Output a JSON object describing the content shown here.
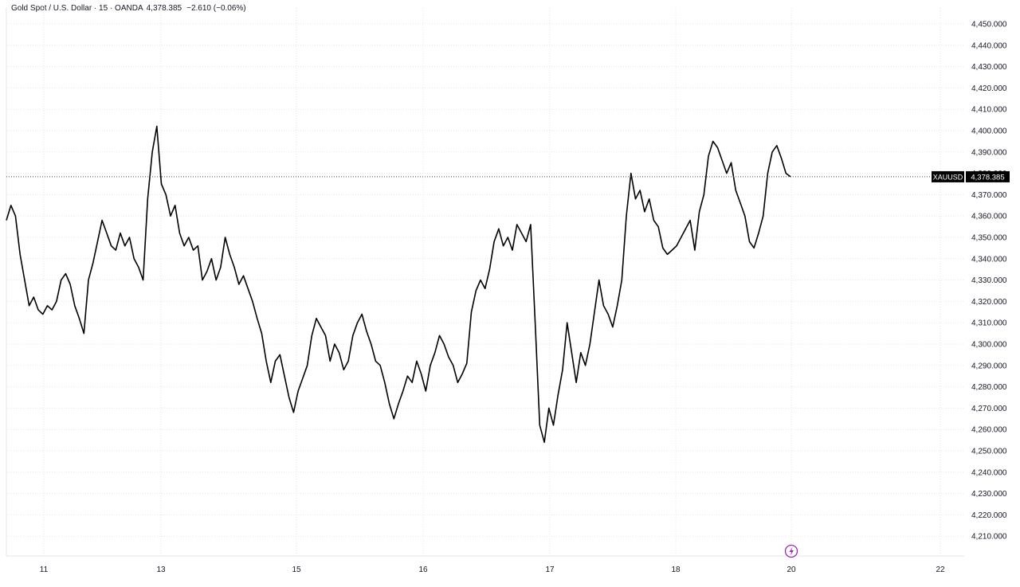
{
  "header": {
    "title": "Gold Spot / U.S. Dollar · 15 · OANDA",
    "price": "4,378.385",
    "change": "−2.610 (−0.06%)"
  },
  "price_label": {
    "symbol": "XAUUSD",
    "value": "4,378.385"
  },
  "colors": {
    "line": "#000000",
    "grid": "#e6e6ea",
    "text": "#131722",
    "label_bg": "#000000",
    "label_text": "#ffffff",
    "event_icon": "#9c27b0"
  },
  "icons": {
    "event": "lightning-icon"
  },
  "chart_data": {
    "type": "line",
    "title": "Gold Spot / U.S. Dollar · 15 · OANDA",
    "xlabel": "",
    "ylabel": "",
    "x_tick_labels": [
      "11",
      "13",
      "15",
      "16",
      "17",
      "18",
      "20",
      "22"
    ],
    "y_tick_labels": [
      "4,450.000",
      "4,440.000",
      "4,430.000",
      "4,420.000",
      "4,410.000",
      "4,400.000",
      "4,390.000",
      "4,380.000",
      "4,370.000",
      "4,360.000",
      "4,350.000",
      "4,340.000",
      "4,330.000",
      "4,320.000",
      "4,310.000",
      "4,300.000",
      "4,290.000",
      "4,280.000",
      "4,270.000",
      "4,260.000",
      "4,250.000",
      "4,240.000",
      "4,230.000",
      "4,220.000",
      "4,210.000"
    ],
    "ylim": [
      4205,
      4455
    ],
    "grid": true,
    "last_price": 4378.385,
    "series": [
      {
        "values": [
          4358,
          4365,
          4360,
          4342,
          4330,
          4318,
          4322,
          4316,
          4314,
          4318,
          4316,
          4320,
          4330,
          4333,
          4328,
          4318,
          4312,
          4305,
          4330,
          4338,
          4348,
          4358,
          4352,
          4346,
          4344,
          4352,
          4346,
          4350,
          4340,
          4336,
          4330,
          4368,
          4390,
          4402,
          4375,
          4370,
          4360,
          4365,
          4352,
          4346,
          4350,
          4344,
          4346,
          4330,
          4334,
          4340,
          4330,
          4336,
          4350,
          4342,
          4336,
          4328,
          4332,
          4326,
          4320,
          4312,
          4305,
          4292,
          4282,
          4292,
          4295,
          4285,
          4275,
          4268,
          4278,
          4284,
          4290,
          4304,
          4312,
          4308,
          4304,
          4292,
          4300,
          4296,
          4288,
          4292,
          4304,
          4310,
          4314,
          4306,
          4300,
          4292,
          4290,
          4282,
          4272,
          4265,
          4272,
          4278,
          4285,
          4282,
          4292,
          4286,
          4278,
          4290,
          4296,
          4304,
          4300,
          4294,
          4290,
          4282,
          4286,
          4291,
          4315,
          4325,
          4330,
          4326,
          4335,
          4348,
          4354,
          4346,
          4350,
          4344,
          4356,
          4352,
          4348,
          4356,
          4310,
          4262,
          4254,
          4270,
          4262,
          4276,
          4288,
          4310,
          4296,
          4282,
          4296,
          4290,
          4300,
          4315,
          4330,
          4318,
          4314,
          4308,
          4318,
          4330,
          4360,
          4380,
          4368,
          4372,
          4362,
          4368,
          4358,
          4355,
          4345,
          4342,
          4344,
          4346,
          4350,
          4354,
          4358,
          4344,
          4362,
          4370,
          4388,
          4395,
          4392,
          4386,
          4380,
          4385,
          4372,
          4366,
          4360,
          4348,
          4345,
          4352,
          4360,
          4380,
          4390,
          4393,
          4387,
          4380,
          4378.385
        ]
      }
    ]
  }
}
